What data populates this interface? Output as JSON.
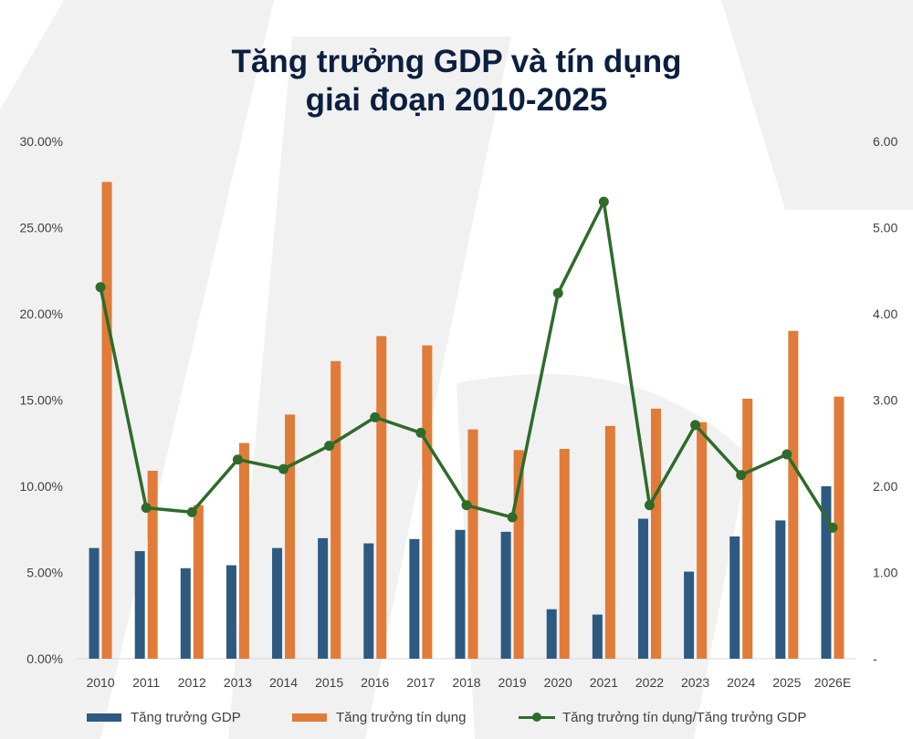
{
  "title_line1": "Tăng trưởng GDP và tín dụng",
  "title_line2": "giai đoạn 2010-2025",
  "colors": {
    "gdp": "#2e5a82",
    "credit": "#e07b39",
    "ratio": "#2e6b2a",
    "title": "#0b1f3f",
    "watermark": "#f1f1f1"
  },
  "legend": {
    "gdp": "Tăng trưởng GDP",
    "credit": "Tăng trưởng tín dụng",
    "ratio": "Tăng trưởng tín dụng/Tăng trưởng GDP"
  },
  "chart_data": {
    "type": "bar",
    "categories": [
      "2010",
      "2011",
      "2012",
      "2013",
      "2014",
      "2015",
      "2016",
      "2017",
      "2018",
      "2019",
      "2020",
      "2021",
      "2022",
      "2023",
      "2024",
      "2025",
      "2026E"
    ],
    "series": [
      {
        "name": "Tăng trưởng GDP",
        "type": "bar",
        "axis": "left",
        "values": [
          6.42,
          6.24,
          5.25,
          5.42,
          6.42,
          6.99,
          6.69,
          6.94,
          7.47,
          7.36,
          2.87,
          2.56,
          8.12,
          5.05,
          7.09,
          8.02,
          10.0
        ]
      },
      {
        "name": "Tăng trưởng tín dụng",
        "type": "bar",
        "axis": "left",
        "values": [
          27.65,
          10.9,
          8.91,
          12.51,
          14.16,
          17.26,
          18.71,
          18.17,
          13.3,
          12.1,
          12.17,
          13.5,
          14.5,
          13.71,
          15.08,
          19.01,
          15.2
        ]
      },
      {
        "name": "Tăng trưởng tín dụng/Tăng trưởng GDP",
        "type": "line",
        "axis": "right",
        "values": [
          4.31,
          1.75,
          1.7,
          2.31,
          2.2,
          2.47,
          2.8,
          2.62,
          1.78,
          1.64,
          4.24,
          5.3,
          1.78,
          2.71,
          2.13,
          2.37,
          1.52
        ]
      }
    ],
    "ylim_left": [
      0,
      30
    ],
    "ylim_right": [
      0,
      6
    ],
    "yticks_left": [
      "0.00%",
      "5.00%",
      "10.00%",
      "15.00%",
      "20.00%",
      "25.00%",
      "30.00%"
    ],
    "yticks_right": [
      "-",
      "1.00",
      "2.00",
      "3.00",
      "4.00",
      "5.00",
      "6.00"
    ],
    "grid": false,
    "legend_position": "bottom"
  }
}
